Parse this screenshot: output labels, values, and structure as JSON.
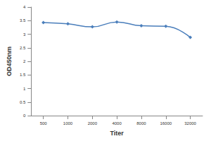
{
  "chart_data": {
    "type": "line",
    "x_label": "Titer",
    "y_label": "OD450nm",
    "categories": [
      "500",
      "1000",
      "2000",
      "4000",
      "8000",
      "16000",
      "32000"
    ],
    "values": [
      3.43,
      3.38,
      3.27,
      3.45,
      3.31,
      3.29,
      2.88
    ],
    "color": "#4a7ebb",
    "marker": "diamond",
    "ylim": [
      0,
      4
    ],
    "yticks": [
      0,
      0.5,
      1,
      1.5,
      2,
      2.5,
      3,
      3.5,
      4
    ],
    "grid": false
  }
}
